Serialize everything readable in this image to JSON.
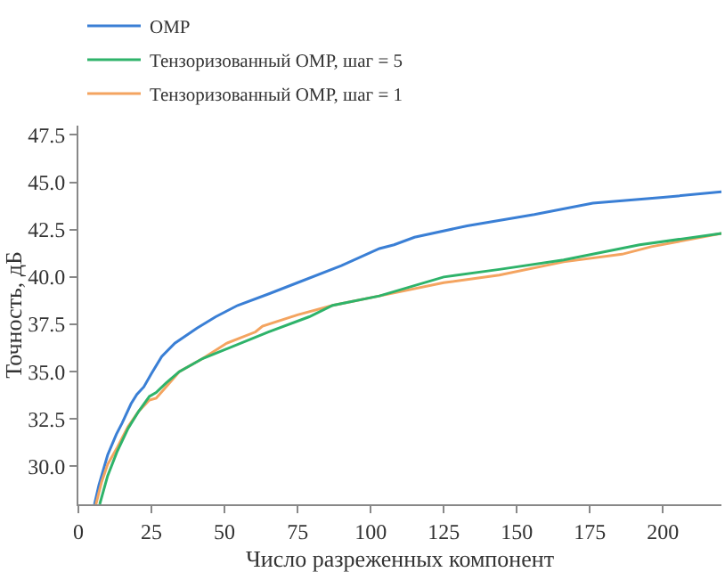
{
  "chart_data": {
    "type": "line",
    "xlabel": "Число разреженных компонент",
    "ylabel": "Точность, дБ",
    "xlim": [
      0,
      220
    ],
    "ylim": [
      28,
      48
    ],
    "xticks": [
      0,
      25,
      50,
      75,
      100,
      125,
      150,
      175,
      200
    ],
    "yticks": [
      {
        "value": 30,
        "label": "30.0"
      },
      {
        "value": 32.5,
        "label": "32.5"
      },
      {
        "value": 35,
        "label": "35.0"
      },
      {
        "value": 37.5,
        "label": "37.5"
      },
      {
        "value": 40,
        "label": "40.0"
      },
      {
        "value": 42.5,
        "label": "42.5"
      },
      {
        "value": 45,
        "label": "45.0"
      },
      {
        "value": 47.5,
        "label": "47.5"
      }
    ],
    "legend": "top",
    "marker": "none",
    "line_style": "solid",
    "series": [
      {
        "name": "OMP",
        "color": "#3a7fd5",
        "x": [
          5.5,
          7,
          10,
          13,
          15,
          18,
          20,
          22.4,
          25,
          28.5,
          33,
          40.6,
          47,
          54.5,
          65,
          75,
          90,
          103,
          108,
          115,
          133,
          156,
          176,
          200,
          220
        ],
        "values": [
          28,
          29,
          30.6,
          31.7,
          32.3,
          33.3,
          33.8,
          34.2,
          34.9,
          35.8,
          36.5,
          37.3,
          37.9,
          38.5,
          39.1,
          39.7,
          40.6,
          41.5,
          41.7,
          42.1,
          42.7,
          43.3,
          43.9,
          44.2,
          44.5
        ]
      },
      {
        "name": "Тензоризованный ОМР, шаг = 1",
        "color": "#f4a460",
        "x": [
          6,
          8,
          10,
          13.3,
          17,
          20.6,
          24.3,
          26.6,
          30,
          34.5,
          42.6,
          50.7,
          60.6,
          63,
          75,
          87,
          103,
          125,
          144,
          166,
          186,
          196,
          220
        ],
        "values": [
          28,
          29.2,
          30.1,
          31,
          32.1,
          32.9,
          33.5,
          33.6,
          34.2,
          35,
          35.7,
          36.5,
          37.1,
          37.4,
          38,
          38.5,
          39,
          39.7,
          40.1,
          40.8,
          41.2,
          41.6,
          42.3
        ]
      },
      {
        "name": "Тензоризованный ОМР, шаг = 5",
        "color": "#2eb36a",
        "x": [
          7.3,
          10,
          13.3,
          17,
          20.6,
          24.3,
          26.6,
          30,
          34.5,
          42.6,
          50.7,
          65,
          79,
          87,
          103,
          125,
          144,
          166,
          192,
          220
        ],
        "values": [
          28,
          29.5,
          30.8,
          32,
          32.9,
          33.7,
          33.9,
          34.4,
          35,
          35.7,
          36.2,
          37.1,
          37.9,
          38.5,
          39,
          40,
          40.4,
          40.9,
          41.7,
          42.3
        ]
      }
    ]
  }
}
